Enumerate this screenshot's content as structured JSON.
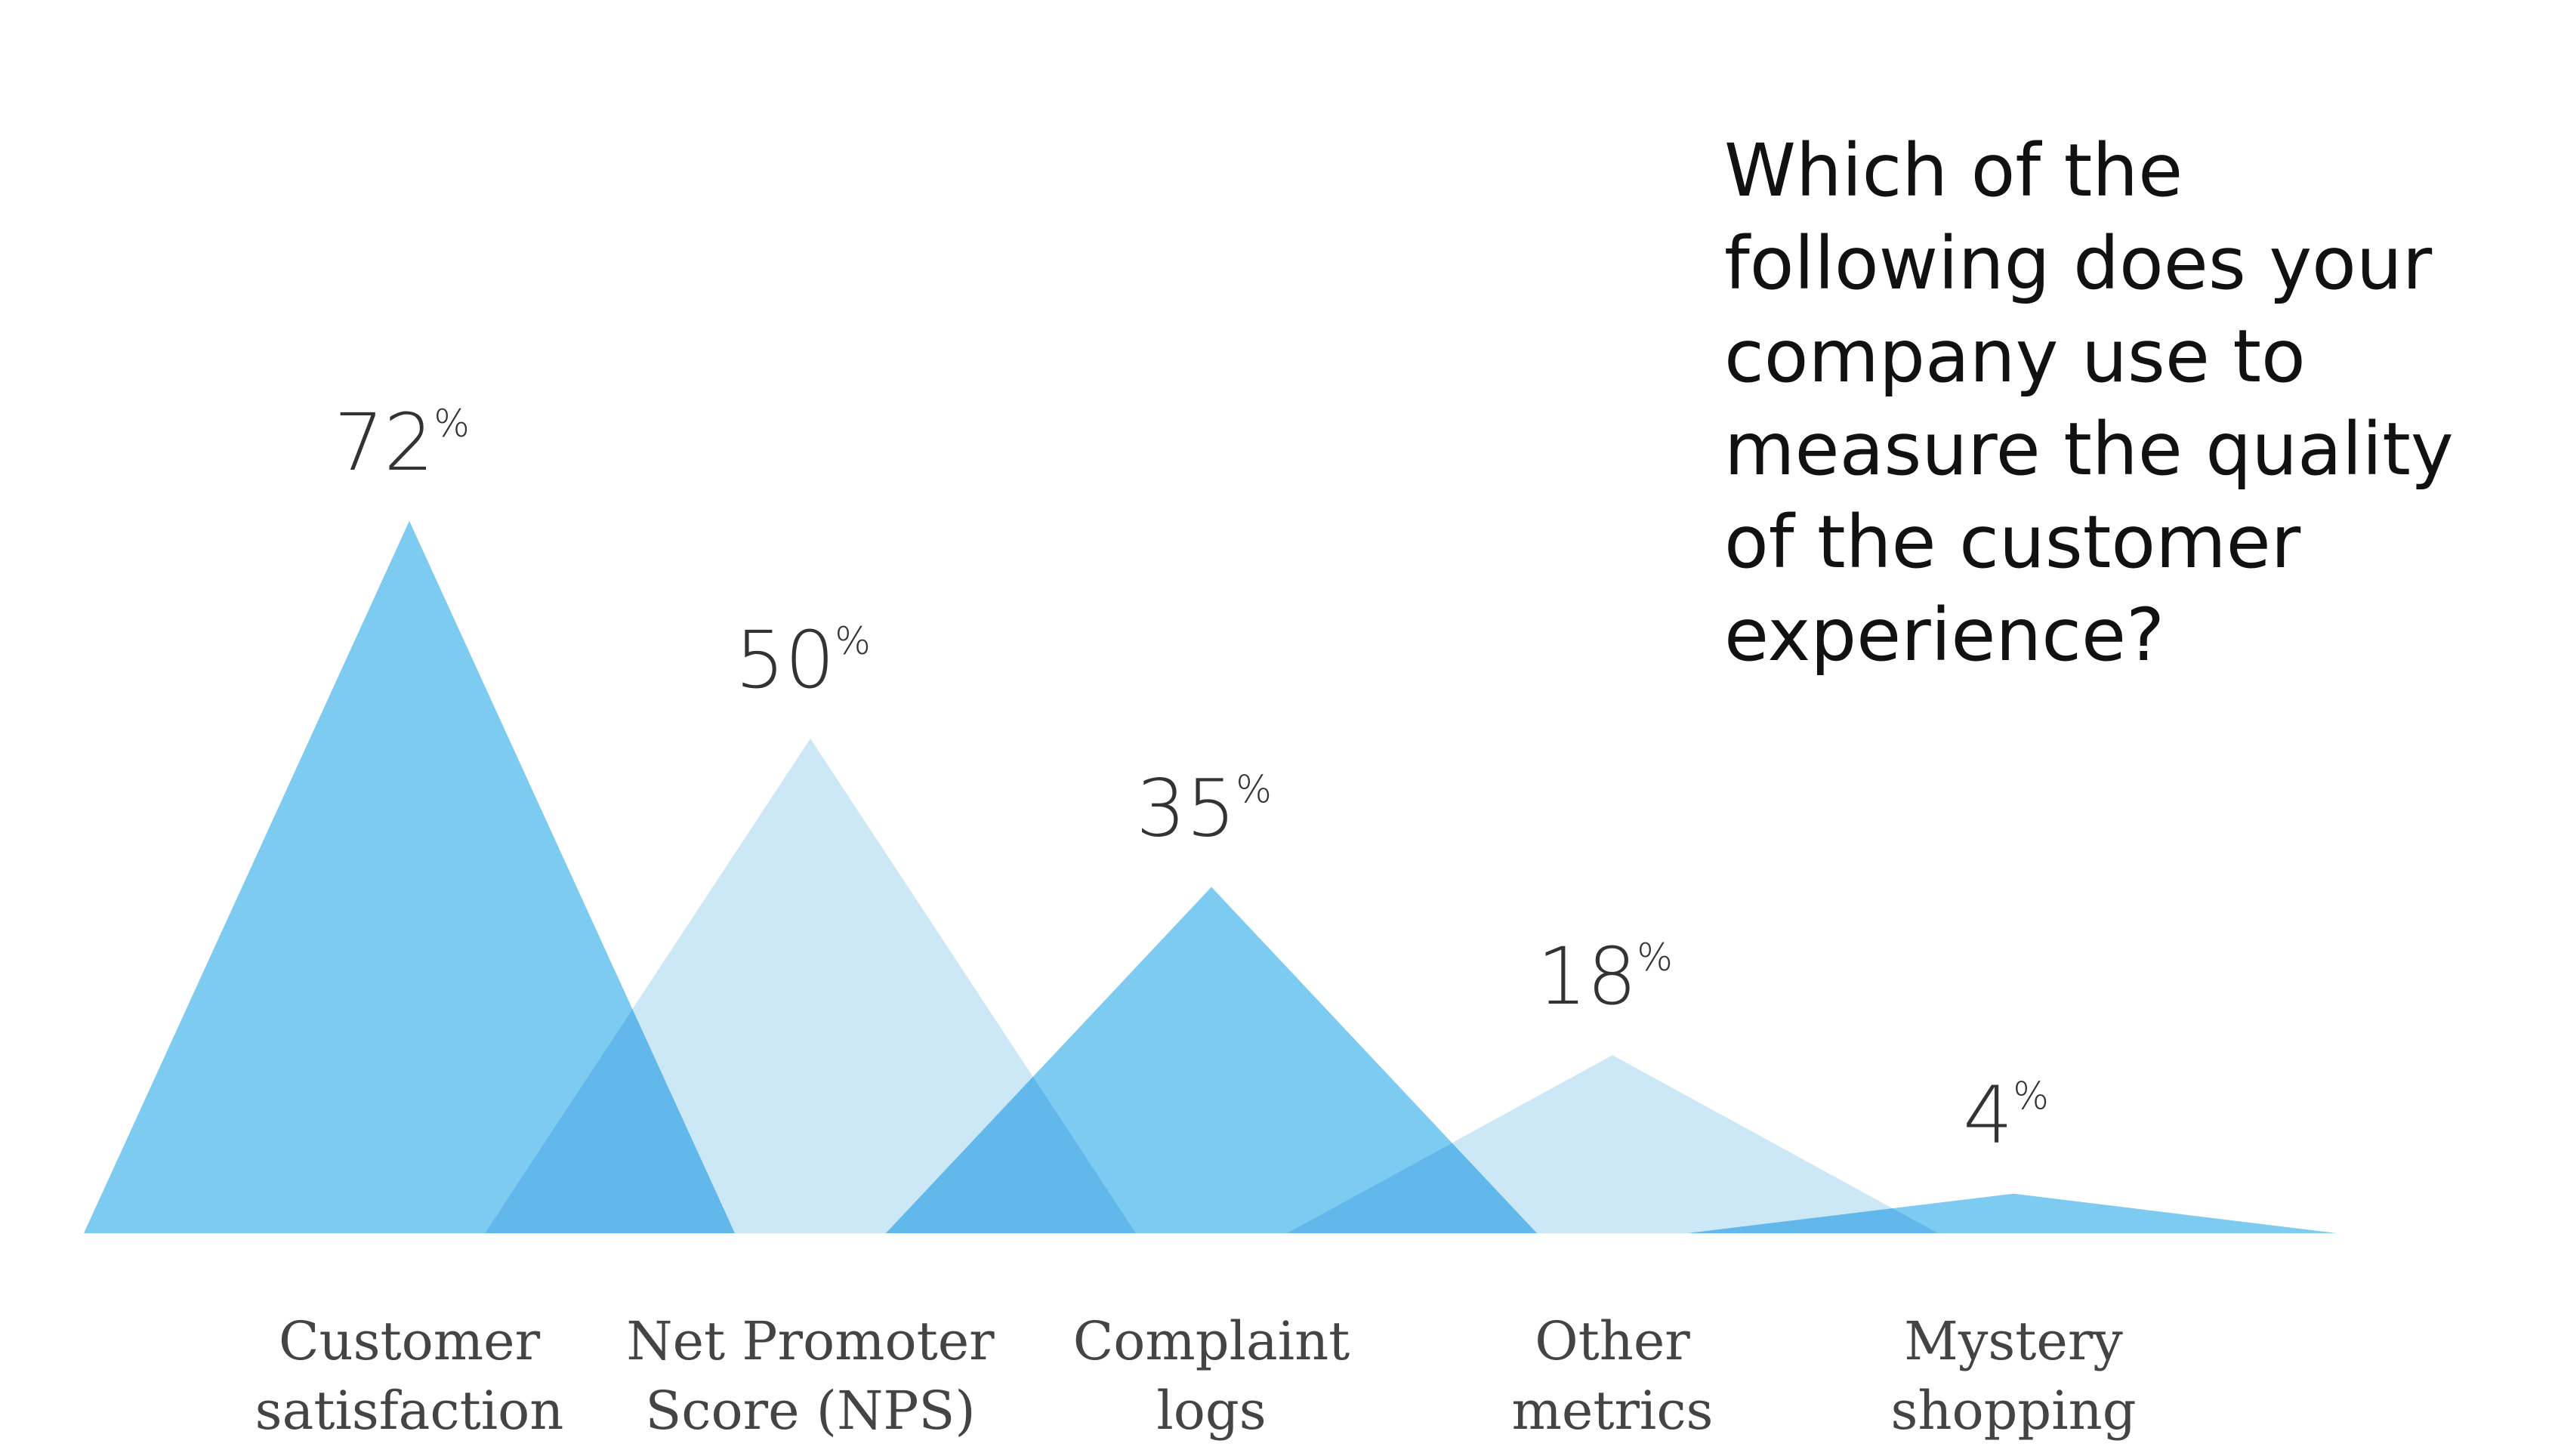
{
  "question": "Which of the following does your company use to measure the quality of the customer experience?",
  "chart_data": {
    "type": "area",
    "title": "Which of the following does your company use to measure the quality of the customer experience?",
    "unit": "%",
    "ylim": [
      0,
      100
    ],
    "categories": [
      {
        "id": "customer-satisfaction",
        "lines": [
          "Customer",
          "satisfaction"
        ],
        "value": 72,
        "color": "#7dcbf1"
      },
      {
        "id": "net-promoter-score",
        "lines": [
          "Net Promoter",
          "Score (NPS)"
        ],
        "value": 50,
        "color": "#cce8f6"
      },
      {
        "id": "complaint-logs",
        "lines": [
          "Complaint",
          "logs"
        ],
        "value": 35,
        "color": "#7dcbf1"
      },
      {
        "id": "other-metrics",
        "lines": [
          "Other",
          "metrics"
        ],
        "value": 18,
        "color": "#cce8f6"
      },
      {
        "id": "mystery-shopping",
        "lines": [
          "Mystery",
          "shopping"
        ],
        "value": 4,
        "color": "#7dcbf1"
      }
    ],
    "overlap_color": "#62b8ea"
  }
}
